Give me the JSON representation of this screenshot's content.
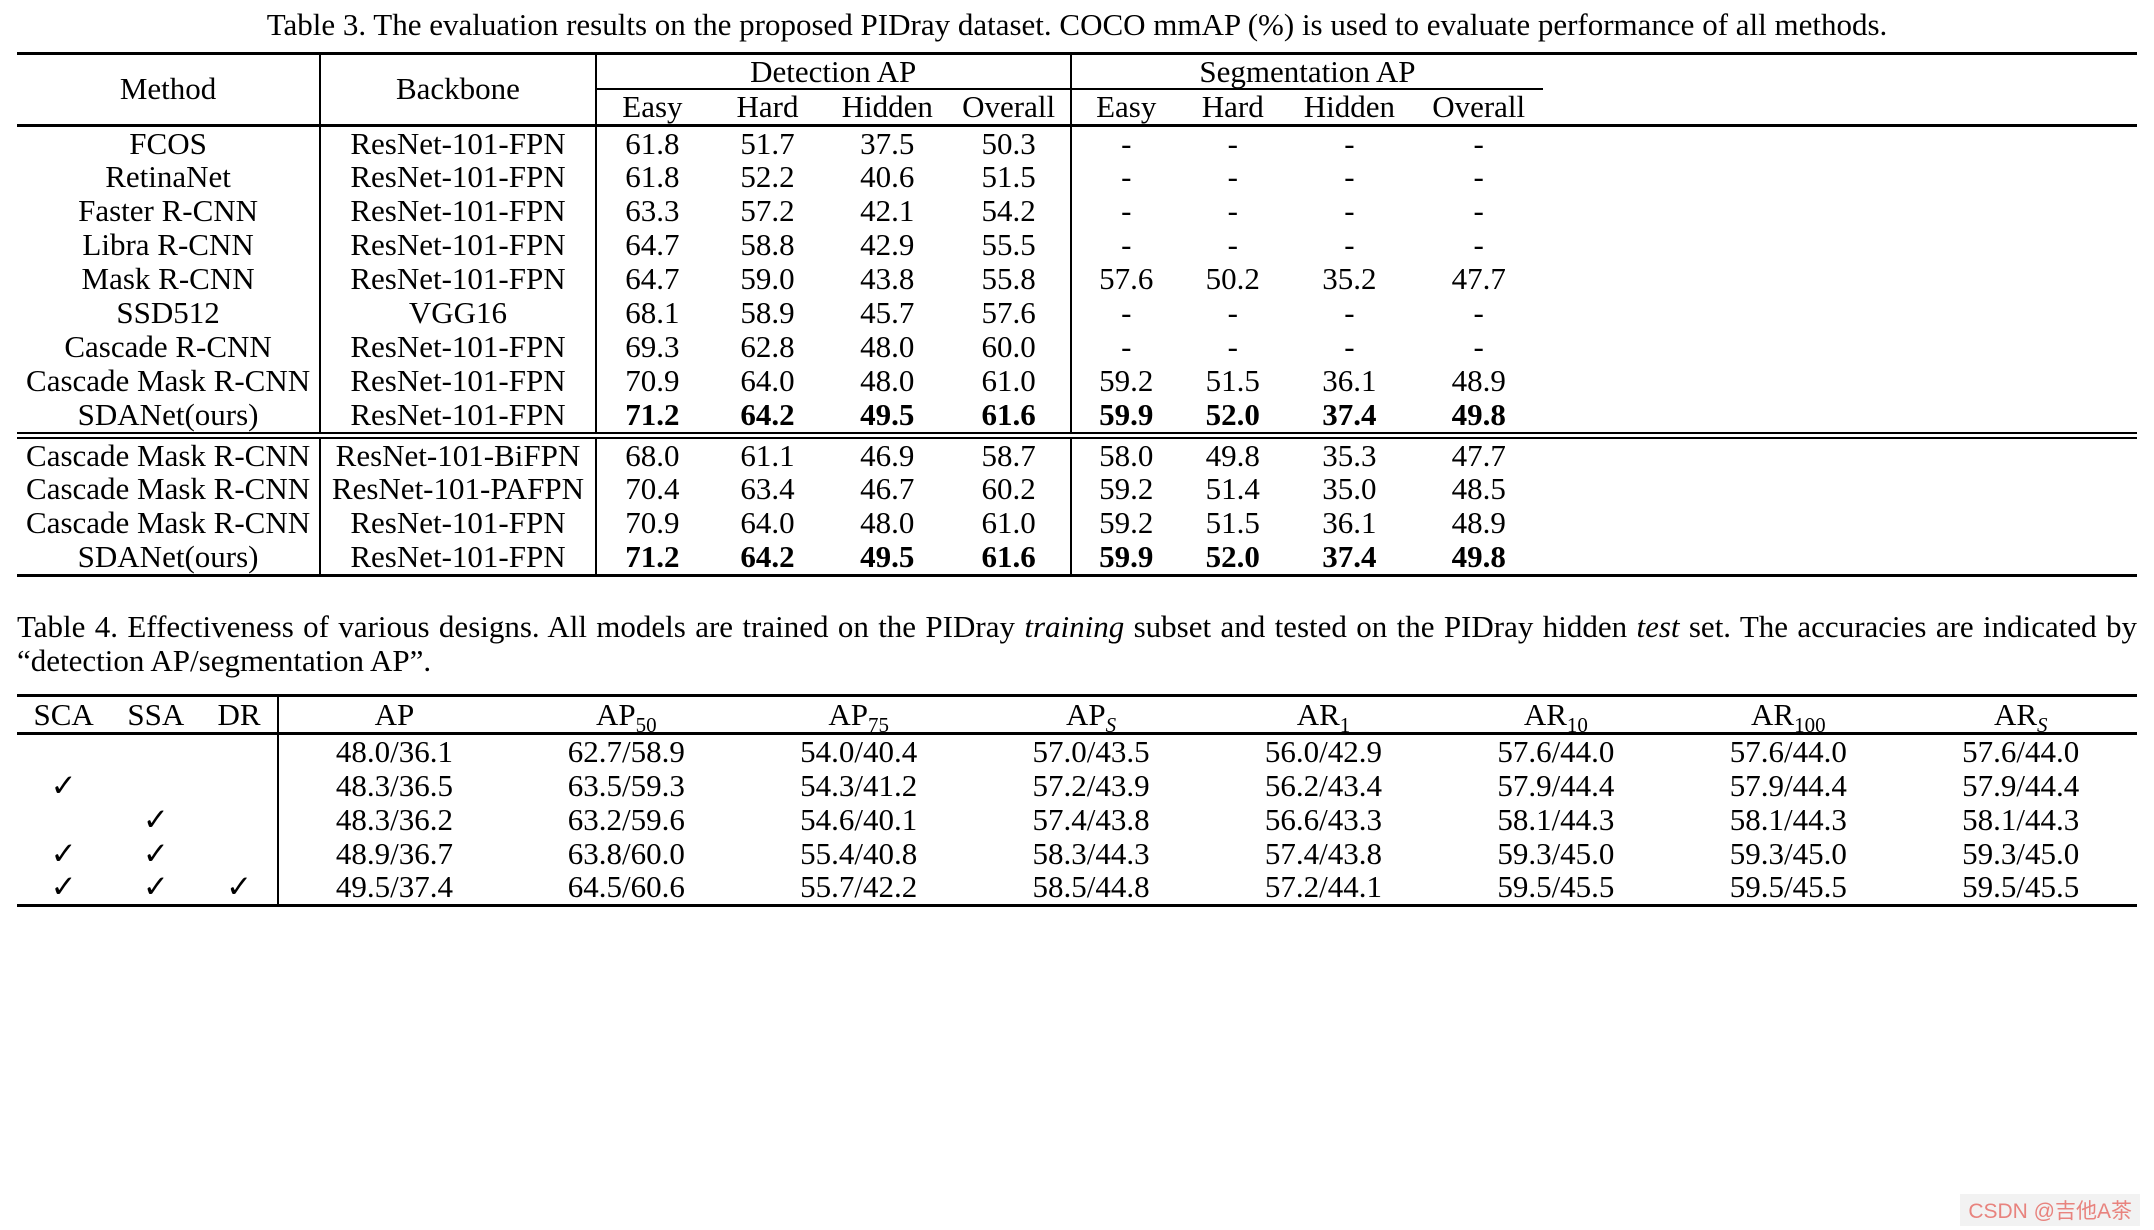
{
  "table3": {
    "caption": "Table 3. The evaluation results on the proposed PIDray dataset. COCO mmAP (%) is used to evaluate performance of all methods.",
    "headers": {
      "method": "Method",
      "backbone": "Backbone",
      "detection_group": "Detection AP",
      "segmentation_group": "Segmentation AP",
      "sub": [
        "Easy",
        "Hard",
        "Hidden",
        "Overall",
        "Easy",
        "Hard",
        "Hidden",
        "Overall"
      ]
    },
    "group1": [
      {
        "method": "FCOS",
        "backbone": "ResNet-101-FPN",
        "bold": false,
        "values": [
          "61.8",
          "51.7",
          "37.5",
          "50.3",
          "-",
          "-",
          "-",
          "-"
        ]
      },
      {
        "method": "RetinaNet",
        "backbone": "ResNet-101-FPN",
        "bold": false,
        "values": [
          "61.8",
          "52.2",
          "40.6",
          "51.5",
          "-",
          "-",
          "-",
          "-"
        ]
      },
      {
        "method": "Faster R-CNN",
        "backbone": "ResNet-101-FPN",
        "bold": false,
        "values": [
          "63.3",
          "57.2",
          "42.1",
          "54.2",
          "-",
          "-",
          "-",
          "-"
        ]
      },
      {
        "method": "Libra R-CNN",
        "backbone": "ResNet-101-FPN",
        "bold": false,
        "values": [
          "64.7",
          "58.8",
          "42.9",
          "55.5",
          "-",
          "-",
          "-",
          "-"
        ]
      },
      {
        "method": "Mask R-CNN",
        "backbone": "ResNet-101-FPN",
        "bold": false,
        "values": [
          "64.7",
          "59.0",
          "43.8",
          "55.8",
          "57.6",
          "50.2",
          "35.2",
          "47.7"
        ]
      },
      {
        "method": "SSD512",
        "backbone": "VGG16",
        "bold": false,
        "values": [
          "68.1",
          "58.9",
          "45.7",
          "57.6",
          "-",
          "-",
          "-",
          "-"
        ]
      },
      {
        "method": "Cascade R-CNN",
        "backbone": "ResNet-101-FPN",
        "bold": false,
        "values": [
          "69.3",
          "62.8",
          "48.0",
          "60.0",
          "-",
          "-",
          "-",
          "-"
        ]
      },
      {
        "method": "Cascade Mask R-CNN",
        "backbone": "ResNet-101-FPN",
        "bold": false,
        "values": [
          "70.9",
          "64.0",
          "48.0",
          "61.0",
          "59.2",
          "51.5",
          "36.1",
          "48.9"
        ]
      },
      {
        "method": "SDANet(ours)",
        "backbone": "ResNet-101-FPN",
        "bold": true,
        "values": [
          "71.2",
          "64.2",
          "49.5",
          "61.6",
          "59.9",
          "52.0",
          "37.4",
          "49.8"
        ]
      }
    ],
    "group2": [
      {
        "method": "Cascade Mask R-CNN",
        "backbone": "ResNet-101-BiFPN",
        "bold": false,
        "values": [
          "68.0",
          "61.1",
          "46.9",
          "58.7",
          "58.0",
          "49.8",
          "35.3",
          "47.7"
        ]
      },
      {
        "method": "Cascade Mask R-CNN",
        "backbone": "ResNet-101-PAFPN",
        "bold": false,
        "values": [
          "70.4",
          "63.4",
          "46.7",
          "60.2",
          "59.2",
          "51.4",
          "35.0",
          "48.5"
        ]
      },
      {
        "method": "Cascade Mask R-CNN",
        "backbone": "ResNet-101-FPN",
        "bold": false,
        "values": [
          "70.9",
          "64.0",
          "48.0",
          "61.0",
          "59.2",
          "51.5",
          "36.1",
          "48.9"
        ]
      },
      {
        "method": "SDANet(ours)",
        "backbone": "ResNet-101-FPN",
        "bold": true,
        "values": [
          "71.2",
          "64.2",
          "49.5",
          "61.6",
          "59.9",
          "52.0",
          "37.4",
          "49.8"
        ]
      }
    ]
  },
  "table4": {
    "caption_parts": [
      {
        "text": "Table 4. Effectiveness of various designs.  All models are trained on the PIDray ",
        "italic": false
      },
      {
        "text": "training",
        "italic": true
      },
      {
        "text": " subset and tested on the PIDray hidden ",
        "italic": false
      },
      {
        "text": "test",
        "italic": true
      },
      {
        "text": " set. The accuracies are indicated by “detection AP/segmentation AP”.",
        "italic": false
      }
    ],
    "checkmark": "✓",
    "headers": [
      {
        "base": "SCA",
        "sub": ""
      },
      {
        "base": "SSA",
        "sub": ""
      },
      {
        "base": "DR",
        "sub": ""
      },
      {
        "base": "AP",
        "sub": ""
      },
      {
        "base": "AP",
        "sub": "50"
      },
      {
        "base": "AP",
        "sub": "75"
      },
      {
        "base": "AP",
        "sub": "S"
      },
      {
        "base": "AR",
        "sub": "1"
      },
      {
        "base": "AR",
        "sub": "10"
      },
      {
        "base": "AR",
        "sub": "100"
      },
      {
        "base": "AR",
        "sub": "S"
      }
    ],
    "rows": [
      {
        "sca": false,
        "ssa": false,
        "dr": false,
        "values": [
          "48.0/36.1",
          "62.7/58.9",
          "54.0/40.4",
          "57.0/43.5",
          "56.0/42.9",
          "57.6/44.0",
          "57.6/44.0",
          "57.6/44.0"
        ]
      },
      {
        "sca": true,
        "ssa": false,
        "dr": false,
        "values": [
          "48.3/36.5",
          "63.5/59.3",
          "54.3/41.2",
          "57.2/43.9",
          "56.2/43.4",
          "57.9/44.4",
          "57.9/44.4",
          "57.9/44.4"
        ]
      },
      {
        "sca": false,
        "ssa": true,
        "dr": false,
        "values": [
          "48.3/36.2",
          "63.2/59.6",
          "54.6/40.1",
          "57.4/43.8",
          "56.6/43.3",
          "58.1/44.3",
          "58.1/44.3",
          "58.1/44.3"
        ]
      },
      {
        "sca": true,
        "ssa": true,
        "dr": false,
        "values": [
          "48.9/36.7",
          "63.8/60.0",
          "55.4/40.8",
          "58.3/44.3",
          "57.4/43.8",
          "59.3/45.0",
          "59.3/45.0",
          "59.3/45.0"
        ]
      },
      {
        "sca": true,
        "ssa": true,
        "dr": true,
        "values": [
          "49.5/37.4",
          "64.5/60.6",
          "55.7/42.2",
          "58.5/44.8",
          "57.2/44.1",
          "59.5/45.5",
          "59.5/45.5",
          "59.5/45.5"
        ]
      }
    ]
  },
  "watermark": "CSDN @吉他A茶"
}
